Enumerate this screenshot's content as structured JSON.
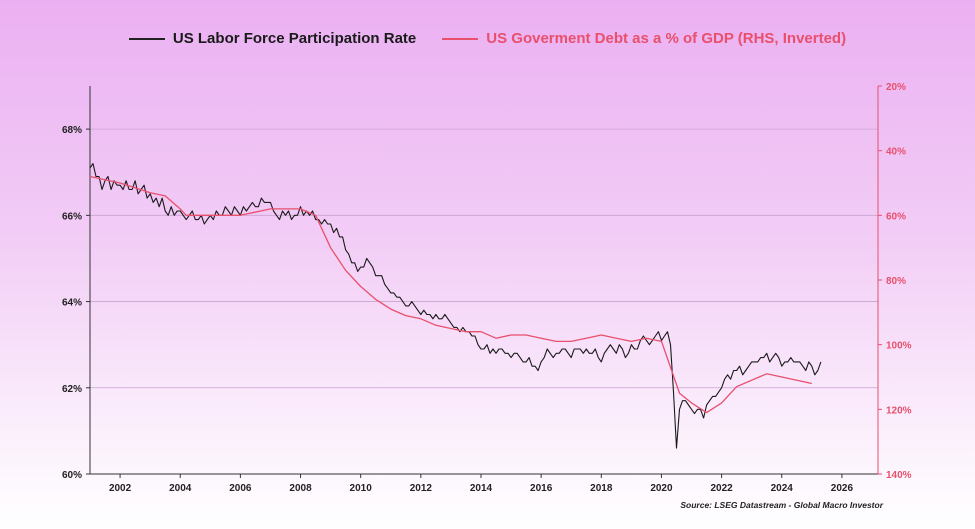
{
  "chart_data": {
    "type": "line",
    "legend_placement": "top-center",
    "grid": true,
    "source": "Source: LSEG Datastream - Global Macro Investor",
    "x_ticks": [
      2002,
      2004,
      2006,
      2008,
      2010,
      2012,
      2014,
      2016,
      2018,
      2020,
      2022,
      2024,
      2026
    ],
    "x_range": [
      2001.0,
      2027.2
    ],
    "left_axis": {
      "ticks": [
        "60%",
        "62%",
        "64%",
        "66%",
        "68%"
      ],
      "tick_values": [
        60,
        62,
        64,
        66,
        68
      ],
      "range": [
        60,
        69
      ]
    },
    "right_axis": {
      "inverted": true,
      "ticks": [
        "20%",
        "40%",
        "60%",
        "80%",
        "100%",
        "120%",
        "140%"
      ],
      "tick_values": [
        20,
        40,
        60,
        80,
        100,
        120,
        140
      ],
      "range": [
        20,
        140
      ],
      "color": "#e8506c"
    },
    "series": [
      {
        "name": "US Labor Force Participation Rate",
        "axis": "left",
        "color": "#1a1a1a",
        "x": [
          2001.0,
          2001.1,
          2001.2,
          2001.3,
          2001.4,
          2001.5,
          2001.6,
          2001.7,
          2001.8,
          2001.9,
          2002.0,
          2002.1,
          2002.2,
          2002.3,
          2002.4,
          2002.5,
          2002.6,
          2002.7,
          2002.8,
          2002.9,
          2003.0,
          2003.1,
          2003.2,
          2003.3,
          2003.4,
          2003.5,
          2003.6,
          2003.7,
          2003.8,
          2003.9,
          2004.0,
          2004.1,
          2004.2,
          2004.3,
          2004.4,
          2004.5,
          2004.6,
          2004.7,
          2004.8,
          2004.9,
          2005.0,
          2005.1,
          2005.2,
          2005.3,
          2005.4,
          2005.5,
          2005.6,
          2005.7,
          2005.8,
          2005.9,
          2006.0,
          2006.1,
          2006.2,
          2006.3,
          2006.4,
          2006.5,
          2006.6,
          2006.7,
          2006.8,
          2006.9,
          2007.0,
          2007.1,
          2007.2,
          2007.3,
          2007.4,
          2007.5,
          2007.6,
          2007.7,
          2007.8,
          2007.9,
          2008.0,
          2008.1,
          2008.2,
          2008.3,
          2008.4,
          2008.5,
          2008.6,
          2008.7,
          2008.8,
          2008.9,
          2009.0,
          2009.1,
          2009.2,
          2009.3,
          2009.4,
          2009.5,
          2009.6,
          2009.7,
          2009.8,
          2009.9,
          2010.0,
          2010.1,
          2010.2,
          2010.3,
          2010.4,
          2010.5,
          2010.6,
          2010.7,
          2010.8,
          2010.9,
          2011.0,
          2011.1,
          2011.2,
          2011.3,
          2011.4,
          2011.5,
          2011.6,
          2011.7,
          2011.8,
          2011.9,
          2012.0,
          2012.1,
          2012.2,
          2012.3,
          2012.4,
          2012.5,
          2012.6,
          2012.7,
          2012.8,
          2012.9,
          2013.0,
          2013.1,
          2013.2,
          2013.3,
          2013.4,
          2013.5,
          2013.6,
          2013.7,
          2013.8,
          2013.9,
          2014.0,
          2014.1,
          2014.2,
          2014.3,
          2014.4,
          2014.5,
          2014.6,
          2014.7,
          2014.8,
          2014.9,
          2015.0,
          2015.1,
          2015.2,
          2015.3,
          2015.4,
          2015.5,
          2015.6,
          2015.7,
          2015.8,
          2015.9,
          2016.0,
          2016.1,
          2016.2,
          2016.3,
          2016.4,
          2016.5,
          2016.6,
          2016.7,
          2016.8,
          2016.9,
          2017.0,
          2017.1,
          2017.2,
          2017.3,
          2017.4,
          2017.5,
          2017.6,
          2017.7,
          2017.8,
          2017.9,
          2018.0,
          2018.1,
          2018.2,
          2018.3,
          2018.4,
          2018.5,
          2018.6,
          2018.7,
          2018.8,
          2018.9,
          2019.0,
          2019.1,
          2019.2,
          2019.3,
          2019.4,
          2019.5,
          2019.6,
          2019.7,
          2019.8,
          2019.9,
          2020.0,
          2020.1,
          2020.2,
          2020.3,
          2020.4,
          2020.5,
          2020.6,
          2020.7,
          2020.8,
          2020.9,
          2021.0,
          2021.1,
          2021.2,
          2021.3,
          2021.4,
          2021.5,
          2021.6,
          2021.7,
          2021.8,
          2021.9,
          2022.0,
          2022.1,
          2022.2,
          2022.3,
          2022.4,
          2022.5,
          2022.6,
          2022.7,
          2022.8,
          2022.9,
          2023.0,
          2023.1,
          2023.2,
          2023.3,
          2023.4,
          2023.5,
          2023.6,
          2023.7,
          2023.8,
          2023.9,
          2024.0,
          2024.1,
          2024.2,
          2024.3,
          2024.4,
          2024.5,
          2024.6,
          2024.7,
          2024.8,
          2024.9,
          2025.0,
          2025.1,
          2025.2,
          2025.3
        ],
        "values": [
          67.1,
          67.2,
          66.9,
          66.9,
          66.6,
          66.8,
          66.9,
          66.6,
          66.8,
          66.7,
          66.7,
          66.6,
          66.8,
          66.6,
          66.6,
          66.8,
          66.5,
          66.6,
          66.7,
          66.4,
          66.5,
          66.3,
          66.4,
          66.2,
          66.4,
          66.1,
          66.0,
          66.2,
          66.0,
          66.1,
          66.1,
          66.0,
          65.9,
          66.0,
          66.1,
          65.9,
          65.9,
          66.0,
          65.8,
          65.9,
          66.0,
          65.9,
          66.1,
          66.0,
          66.0,
          66.2,
          66.1,
          66.0,
          66.2,
          66.1,
          66.0,
          66.2,
          66.1,
          66.2,
          66.3,
          66.2,
          66.2,
          66.4,
          66.3,
          66.3,
          66.3,
          66.1,
          66.0,
          65.9,
          66.1,
          66.0,
          66.1,
          65.9,
          66.0,
          66.0,
          66.2,
          66.0,
          66.1,
          66.0,
          66.1,
          65.9,
          65.9,
          65.8,
          65.9,
          65.8,
          65.8,
          65.6,
          65.7,
          65.5,
          65.5,
          65.2,
          65.1,
          64.9,
          64.9,
          64.7,
          64.8,
          64.8,
          65.0,
          64.9,
          64.8,
          64.6,
          64.6,
          64.6,
          64.4,
          64.3,
          64.2,
          64.2,
          64.1,
          64.1,
          64.0,
          63.9,
          63.9,
          64.0,
          63.9,
          63.8,
          63.7,
          63.8,
          63.7,
          63.7,
          63.6,
          63.7,
          63.6,
          63.6,
          63.7,
          63.6,
          63.5,
          63.4,
          63.4,
          63.3,
          63.4,
          63.3,
          63.3,
          63.2,
          63.2,
          63.0,
          62.9,
          62.9,
          63.0,
          62.8,
          62.9,
          62.8,
          62.9,
          62.9,
          62.8,
          62.8,
          62.7,
          62.8,
          62.8,
          62.7,
          62.6,
          62.6,
          62.7,
          62.5,
          62.5,
          62.4,
          62.6,
          62.7,
          62.9,
          62.8,
          62.7,
          62.8,
          62.8,
          62.9,
          62.9,
          62.8,
          62.7,
          62.9,
          62.9,
          62.9,
          62.8,
          62.9,
          62.8,
          62.8,
          62.9,
          62.7,
          62.6,
          62.8,
          62.9,
          63.0,
          62.9,
          62.8,
          63.0,
          62.9,
          62.7,
          62.8,
          63.0,
          62.9,
          62.9,
          63.1,
          63.2,
          63.1,
          63.0,
          63.1,
          63.2,
          63.3,
          63.1,
          63.2,
          63.3,
          63.0,
          61.9,
          60.6,
          61.5,
          61.7,
          61.7,
          61.6,
          61.5,
          61.4,
          61.5,
          61.5,
          61.3,
          61.6,
          61.7,
          61.8,
          61.8,
          61.9,
          62.0,
          62.2,
          62.3,
          62.2,
          62.4,
          62.4,
          62.5,
          62.3,
          62.4,
          62.5,
          62.6,
          62.6,
          62.6,
          62.7,
          62.7,
          62.8,
          62.6,
          62.7,
          62.8,
          62.7,
          62.5,
          62.6,
          62.6,
          62.7,
          62.6,
          62.6,
          62.6,
          62.5,
          62.4,
          62.6,
          62.5,
          62.3,
          62.4,
          62.6
        ]
      },
      {
        "name": "US Goverment Debt as a % of GDP (RHS, Inverted)",
        "axis": "right",
        "color": "#e8506c",
        "x": [
          2001.0,
          2002.0,
          2003.0,
          2003.5,
          2004.0,
          2004.2,
          2005.0,
          2006.0,
          2007.0,
          2008.0,
          2008.5,
          2009.0,
          2009.5,
          2010.0,
          2010.5,
          2011.0,
          2011.5,
          2012.0,
          2012.5,
          2013.0,
          2013.5,
          2014.0,
          2014.5,
          2015.0,
          2015.5,
          2016.0,
          2016.5,
          2017.0,
          2017.5,
          2018.0,
          2018.5,
          2019.0,
          2019.5,
          2020.0,
          2020.3,
          2020.6,
          2021.0,
          2021.5,
          2022.0,
          2022.5,
          2023.0,
          2023.5,
          2024.0,
          2024.5,
          2025.0
        ],
        "values": [
          48,
          50,
          53,
          54,
          58,
          60,
          60,
          60,
          58,
          58,
          60,
          70,
          77,
          82,
          86,
          89,
          91,
          92,
          94,
          95,
          96,
          96,
          98,
          97,
          97,
          98,
          99,
          99,
          98,
          97,
          98,
          99,
          98,
          99,
          107,
          115,
          118,
          121,
          118,
          113,
          111,
          109,
          110,
          111,
          112
        ]
      }
    ]
  },
  "legend": {
    "item1": "US Labor Force Participation Rate",
    "item2": "US Goverment Debt as a % of GDP (RHS, Inverted)"
  }
}
